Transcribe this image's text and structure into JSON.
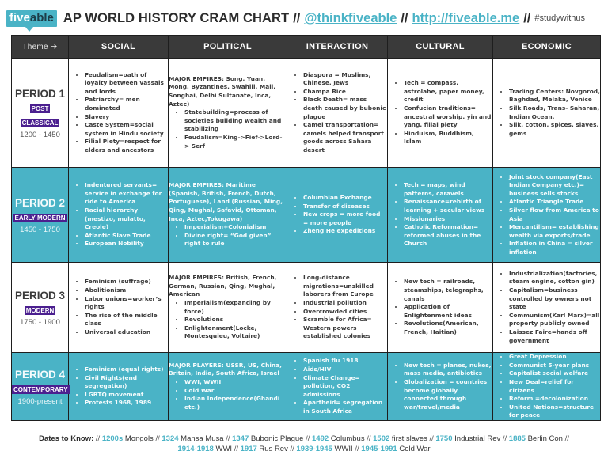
{
  "header": {
    "logo": {
      "five": "five",
      "able": "able"
    },
    "title": "AP WORLD HISTORY CRAM CHART",
    "separator": "//",
    "twitter_link": "@thinkfiveable",
    "site_link": "http://fiveable.me",
    "hashtag": "#studywithus"
  },
  "table": {
    "theme_label": "Theme ➔",
    "columns": [
      "SOCIAL",
      "POLITICAL",
      "INTERACTION",
      "CULTURAL",
      "ECONOMIC"
    ],
    "periods": [
      {
        "name": "PERIOD 1",
        "era_lines": [
          "POST",
          "CLASSICAL"
        ],
        "years": "1200 - 1450",
        "social": [
          "Feudalism=oath of loyalty between vassals and lords",
          "Patriarchy= men dominated",
          "Slavery",
          "Caste System=social system in Hindu society",
          "Filial Piety=respect for elders and ancestors"
        ],
        "political_lead": "MAJOR EMPIRES: Song, Yuan, Mong, Byzantines, Swahili, Mali, Songhai, Delhi Sultanate, Inca, Aztec)",
        "political": [
          "Statebuilding=process of societies building wealth and stabilizing",
          "Feudalism=King->Fief->Lord-> Serf"
        ],
        "interaction": [
          "Diaspora = Muslims, Chinese, Jews",
          "Champa Rice",
          "Black Death= mass death caused by bubonic plague",
          "Camel transportation= camels helped transport goods across Sahara desert"
        ],
        "cultural": [
          "Tech = compass, astrolabe, paper money, credit",
          "Confucian traditions= ancestral worship, yin and yang, filial piety",
          "Hinduism, Buddhism, Islam"
        ],
        "economic": [
          "Trading Centers: Novgorod, Baghdad, Melaka, Venice",
          "Silk Roads, Trans- Saharan, Indian Ocean,",
          "Silk, cotton, spices, slaves, gems"
        ]
      },
      {
        "name": "PERIOD 2",
        "era_lines": [
          "EARLY MODERN"
        ],
        "years": "1450 - 1750",
        "social": [
          "Indentured servants= service in exchange for ride to America",
          "Racial hierarchy (mestizo, mulatto, Creole)",
          "Atlantic Slave Trade",
          "European Nobility"
        ],
        "political_lead": "MAJOR EMPIRES: Maritime (Spanish, British, French, Dutch, Portuguese), Land (Russian, Ming, Qing, Mughal, Safavid, Ottoman, Inca, Aztec,Tokugawa)",
        "political": [
          "Imperialism+Colonialism",
          "Divine right= “God given” right to rule"
        ],
        "interaction": [
          "Columbian Exchange",
          "Transfer of diseases",
          "New crops = more food = more people",
          "Zheng He expeditions"
        ],
        "cultural": [
          "Tech = maps, wind patterns, caravels",
          "Renaissance=rebirth of learning + secular views",
          "Missionaries",
          "Catholic Reformation= reformed abuses in the Church"
        ],
        "economic": [
          "Joint stock company(East Indian Company etc.)= business sells stocks",
          "Atlantic Triangle Trade",
          "Silver flow from America to Asia",
          "Mercantilism= establishing wealth via exports/trade",
          "Inflation in China = silver inflation"
        ]
      },
      {
        "name": "PERIOD 3",
        "era_lines": [
          "MODERN"
        ],
        "years": "1750 - 1900",
        "social": [
          "Feminism (suffrage)",
          "Abolitionism",
          "Labor unions=worker’s rights",
          "The rise of the middle class",
          "Universal education"
        ],
        "political_lead": "MAJOR EMPIRES: British,  French, German, Russian, Qing, Mughal, American",
        "political": [
          "Imperialism(expanding by force)",
          "Revolutions",
          "Enlightenment(Locke, Montesquieu, Voltaire)"
        ],
        "interaction": [
          "Long-distance migrations=unskilled laborers from Europe",
          "Industrial pollution",
          "Overcrowded cities",
          "Scramble for Africa= Western powers established colonies"
        ],
        "cultural": [
          "New tech = railroads, steamships, telegraphs, canals",
          "Application of Enlightenment ideas",
          "Revolutions(American, French, Haitian)"
        ],
        "economic": [
          "Industrialization(factories, steam engine, cotton gin)",
          "Capitalism=business controlled by owners not state",
          "Communism(Karl Marx)=all property publicly  owned",
          "Laissez Faire=hands off government"
        ]
      },
      {
        "name": "PERIOD 4",
        "era_lines": [
          "CONTEMPORARY"
        ],
        "years": "1900-present",
        "social": [
          "Feminism (equal rights)",
          "Civil Rights(end segregation)",
          "LGBTQ movement",
          "Protests 1968, 1989"
        ],
        "political_lead": "MAJOR PLAYERS: USSR, US, China, Britain, India, South Africa, Israel",
        "political": [
          "WWI, WWII",
          "Cold War",
          "Indian Independence(Ghandi etc.)"
        ],
        "interaction": [
          "Spanish flu 1918",
          "Aids/HIV",
          "Climate Change= pollution, CO2 admissions",
          "Apartheid= segregation in South Africa"
        ],
        "cultural": [
          "New tech = planes, nukes, mass media, antibiotics",
          "Globalization = countries become globally connected through war/travel/media"
        ],
        "economic": [
          "Great Depression",
          "Communist 5-year plans",
          "Capitalist social welfare",
          " New Deal=relief for citizens",
          "Reform =decolonization",
          "United Nations=structure for peace"
        ]
      }
    ]
  },
  "dates": {
    "label": "Dates to Know:",
    "separator": "//",
    "items": [
      {
        "year": "1200s",
        "event": "Mongols"
      },
      {
        "year": "1324",
        "event": "Mansa Musa"
      },
      {
        "year": "1347",
        "event": "Bubonic Plague"
      },
      {
        "year": "1492",
        "event": "Columbus"
      },
      {
        "year": "1502",
        "event": "first slaves"
      },
      {
        "year": "1750",
        "event": "Industrial Rev"
      },
      {
        "year": "1885",
        "event": "Berlin Con"
      },
      {
        "year": "1914-1918",
        "event": "WWI"
      },
      {
        "year": "1917",
        "event": "Rus Rev"
      },
      {
        "year": "1939-1945",
        "event": "WWII"
      },
      {
        "year": "1945-1991",
        "event": "Cold War"
      }
    ]
  },
  "colors": {
    "brand_teal": "#4ab3c6",
    "header_dark": "#3a3a3a",
    "era_purple": "#4b1f8f",
    "text_dark": "#3a3a3a"
  }
}
